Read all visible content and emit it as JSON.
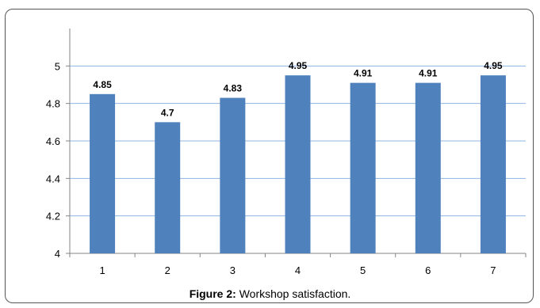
{
  "chart_data": {
    "type": "bar",
    "categories": [
      "1",
      "2",
      "3",
      "4",
      "5",
      "6",
      "7"
    ],
    "values": [
      4.85,
      4.7,
      4.83,
      4.95,
      4.91,
      4.91,
      4.95
    ],
    "data_labels": [
      "4.85",
      "4.7",
      "4.83",
      "4.95",
      "4.91",
      "4.91",
      "4.95"
    ],
    "ylim": [
      4,
      5.2
    ],
    "yticks": [
      "4",
      "4.2",
      "4.4",
      "4.6",
      "4.8",
      "5"
    ],
    "grid": true,
    "xlabel": "",
    "ylabel": "",
    "title": ""
  },
  "colors": {
    "bar": "#4f81bd",
    "grid": "#8eb4e3",
    "axis": "#868686"
  },
  "caption": {
    "figure_label": "Figure 2:",
    "text": " Workshop satisfaction."
  }
}
